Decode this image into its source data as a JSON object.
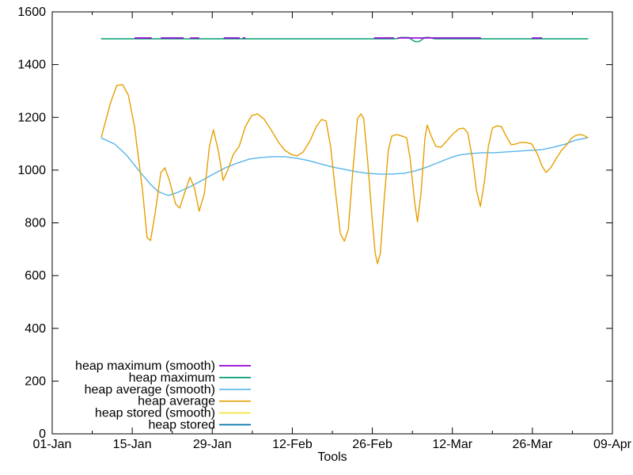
{
  "chart_data": {
    "type": "line",
    "title": "",
    "xlabel": "Tools",
    "background_color": "#ffffff",
    "axis_color": "#000000",
    "grid": false,
    "x_axis": {
      "range_days": [
        0,
        98
      ],
      "tick_days": [
        0,
        14,
        28,
        42,
        56,
        70,
        84,
        98
      ],
      "tick_labels": [
        "01-Jan",
        "15-Jan",
        "29-Jan",
        "12-Feb",
        "26-Feb",
        "12-Mar",
        "26-Mar",
        "09-Apr"
      ],
      "minor_tick_days": [
        7,
        21,
        35,
        49,
        63,
        77,
        91
      ]
    },
    "y_axis": {
      "range": [
        0,
        1600
      ],
      "ticks": [
        0,
        200,
        400,
        600,
        800,
        1000,
        1200,
        1400,
        1600
      ],
      "tick_labels": [
        "0",
        "200",
        "400",
        "600",
        "800",
        "1000",
        "1200",
        "1400",
        "1600"
      ]
    },
    "legend": {
      "position": "bottom-left",
      "entries": [
        {
          "label": "heap maximum (smooth)",
          "color": "#9400d3"
        },
        {
          "label": "heap maximum",
          "color": "#009e73"
        },
        {
          "label": "heap average (smooth)",
          "color": "#56b4e9"
        },
        {
          "label": "heap average",
          "color": "#e69f00"
        },
        {
          "label": "heap stored (smooth)",
          "color": "#f0e442"
        },
        {
          "label": "heap stored",
          "color": "#0072b2"
        }
      ]
    },
    "series": [
      {
        "name": "heap maximum",
        "color": "#009e73",
        "style": "line",
        "points": [
          [
            8.6,
            1498
          ],
          [
            59.9,
            1498
          ],
          [
            60.5,
            1499
          ],
          [
            61.0,
            1503
          ],
          [
            62.3,
            1503
          ],
          [
            62.9,
            1495
          ],
          [
            63.5,
            1487
          ],
          [
            64.1,
            1487
          ],
          [
            64.7,
            1495
          ],
          [
            65.2,
            1503
          ],
          [
            66.0,
            1503
          ],
          [
            66.6,
            1499
          ],
          [
            67.0,
            1498
          ],
          [
            93.7,
            1498
          ]
        ]
      },
      {
        "name": "heap maximum (smooth)",
        "color": "#9400d3",
        "style": "overlay-segments",
        "value": 1501,
        "segments_days": [
          [
            14.4,
            17.4
          ],
          [
            19.0,
            23.0
          ],
          [
            24.1,
            25.7
          ],
          [
            30.0,
            32.8
          ],
          [
            33.3,
            33.8
          ],
          [
            56.3,
            59.8
          ],
          [
            60.4,
            75.0
          ],
          [
            83.9,
            85.7
          ]
        ]
      },
      {
        "name": "heap average (smooth)",
        "color": "#56b4e9",
        "style": "line",
        "points": [
          [
            8.6,
            1122
          ],
          [
            10.9,
            1099
          ],
          [
            13.0,
            1057
          ],
          [
            15.1,
            1000
          ],
          [
            17.2,
            946
          ],
          [
            18.5,
            919
          ],
          [
            19.9,
            907
          ],
          [
            20.3,
            904
          ],
          [
            22.0,
            916
          ],
          [
            24.1,
            937
          ],
          [
            26.2,
            961
          ],
          [
            28.2,
            985
          ],
          [
            30.3,
            1009
          ],
          [
            32.4,
            1027
          ],
          [
            34.5,
            1042
          ],
          [
            36.5,
            1048
          ],
          [
            38.6,
            1051
          ],
          [
            40.7,
            1051
          ],
          [
            42.8,
            1045
          ],
          [
            44.9,
            1036
          ],
          [
            46.9,
            1024
          ],
          [
            49.0,
            1012
          ],
          [
            51.1,
            1003
          ],
          [
            53.2,
            994
          ],
          [
            55.2,
            988
          ],
          [
            57.3,
            985
          ],
          [
            59.4,
            985
          ],
          [
            61.5,
            988
          ],
          [
            63.5,
            997
          ],
          [
            65.6,
            1012
          ],
          [
            67.7,
            1030
          ],
          [
            69.8,
            1048
          ],
          [
            71.1,
            1057
          ],
          [
            73.2,
            1063
          ],
          [
            75.3,
            1066
          ],
          [
            77.4,
            1066
          ],
          [
            79.4,
            1069
          ],
          [
            81.5,
            1072
          ],
          [
            83.6,
            1075
          ],
          [
            85.7,
            1078
          ],
          [
            87.7,
            1087
          ],
          [
            89.8,
            1099
          ],
          [
            91.6,
            1114
          ],
          [
            93.7,
            1123
          ]
        ]
      },
      {
        "name": "heap average",
        "color": "#e69f00",
        "style": "line",
        "points": [
          [
            8.6,
            1126
          ],
          [
            10.2,
            1255
          ],
          [
            11.3,
            1321
          ],
          [
            12.3,
            1324
          ],
          [
            13.3,
            1285
          ],
          [
            14.4,
            1165
          ],
          [
            15.8,
            925
          ],
          [
            16.6,
            744
          ],
          [
            17.2,
            733
          ],
          [
            18.0,
            835
          ],
          [
            19.0,
            991
          ],
          [
            19.7,
            1009
          ],
          [
            20.5,
            961
          ],
          [
            21.6,
            871
          ],
          [
            22.3,
            856
          ],
          [
            23.1,
            910
          ],
          [
            24.1,
            973
          ],
          [
            24.9,
            931
          ],
          [
            25.7,
            844
          ],
          [
            26.6,
            910
          ],
          [
            27.5,
            1090
          ],
          [
            28.2,
            1153
          ],
          [
            29.1,
            1069
          ],
          [
            29.9,
            961
          ],
          [
            30.7,
            1000
          ],
          [
            31.7,
            1060
          ],
          [
            32.7,
            1090
          ],
          [
            33.8,
            1165
          ],
          [
            34.9,
            1207
          ],
          [
            35.9,
            1213
          ],
          [
            37.0,
            1195
          ],
          [
            38.2,
            1156
          ],
          [
            39.6,
            1105
          ],
          [
            40.7,
            1075
          ],
          [
            41.8,
            1060
          ],
          [
            42.8,
            1054
          ],
          [
            43.9,
            1069
          ],
          [
            45.1,
            1111
          ],
          [
            46.2,
            1165
          ],
          [
            47.1,
            1192
          ],
          [
            47.9,
            1186
          ],
          [
            48.7,
            1090
          ],
          [
            49.6,
            910
          ],
          [
            50.4,
            760
          ],
          [
            51.1,
            730
          ],
          [
            51.8,
            775
          ],
          [
            52.6,
            1000
          ],
          [
            53.4,
            1195
          ],
          [
            54.0,
            1213
          ],
          [
            54.5,
            1195
          ],
          [
            55.2,
            1030
          ],
          [
            55.9,
            835
          ],
          [
            56.5,
            685
          ],
          [
            56.9,
            645
          ],
          [
            57.4,
            685
          ],
          [
            58.1,
            895
          ],
          [
            58.8,
            1075
          ],
          [
            59.4,
            1129
          ],
          [
            60.3,
            1135
          ],
          [
            61.2,
            1129
          ],
          [
            62.0,
            1123
          ],
          [
            62.6,
            1045
          ],
          [
            63.4,
            880
          ],
          [
            63.9,
            804
          ],
          [
            64.5,
            910
          ],
          [
            65.2,
            1120
          ],
          [
            65.6,
            1171
          ],
          [
            66.3,
            1129
          ],
          [
            67.1,
            1090
          ],
          [
            68.0,
            1087
          ],
          [
            68.8,
            1105
          ],
          [
            70.0,
            1135
          ],
          [
            71.1,
            1156
          ],
          [
            72.0,
            1159
          ],
          [
            72.7,
            1141
          ],
          [
            73.5,
            1045
          ],
          [
            74.2,
            925
          ],
          [
            74.9,
            862
          ],
          [
            75.6,
            955
          ],
          [
            76.3,
            1090
          ],
          [
            77.0,
            1159
          ],
          [
            77.8,
            1168
          ],
          [
            78.6,
            1165
          ],
          [
            79.4,
            1129
          ],
          [
            80.3,
            1096
          ],
          [
            81.1,
            1099
          ],
          [
            81.9,
            1105
          ],
          [
            82.9,
            1105
          ],
          [
            83.9,
            1099
          ],
          [
            84.9,
            1060
          ],
          [
            85.7,
            1015
          ],
          [
            86.4,
            991
          ],
          [
            87.2,
            1009
          ],
          [
            88.2,
            1045
          ],
          [
            89.1,
            1075
          ],
          [
            90.0,
            1096
          ],
          [
            90.8,
            1120
          ],
          [
            91.6,
            1132
          ],
          [
            92.5,
            1135
          ],
          [
            93.2,
            1129
          ],
          [
            93.7,
            1123
          ]
        ]
      },
      {
        "name": "heap stored (smooth)",
        "color": "#f0e442",
        "style": "line",
        "visible": false,
        "points": []
      },
      {
        "name": "heap stored",
        "color": "#0072b2",
        "style": "line",
        "visible": false,
        "points": []
      }
    ]
  }
}
